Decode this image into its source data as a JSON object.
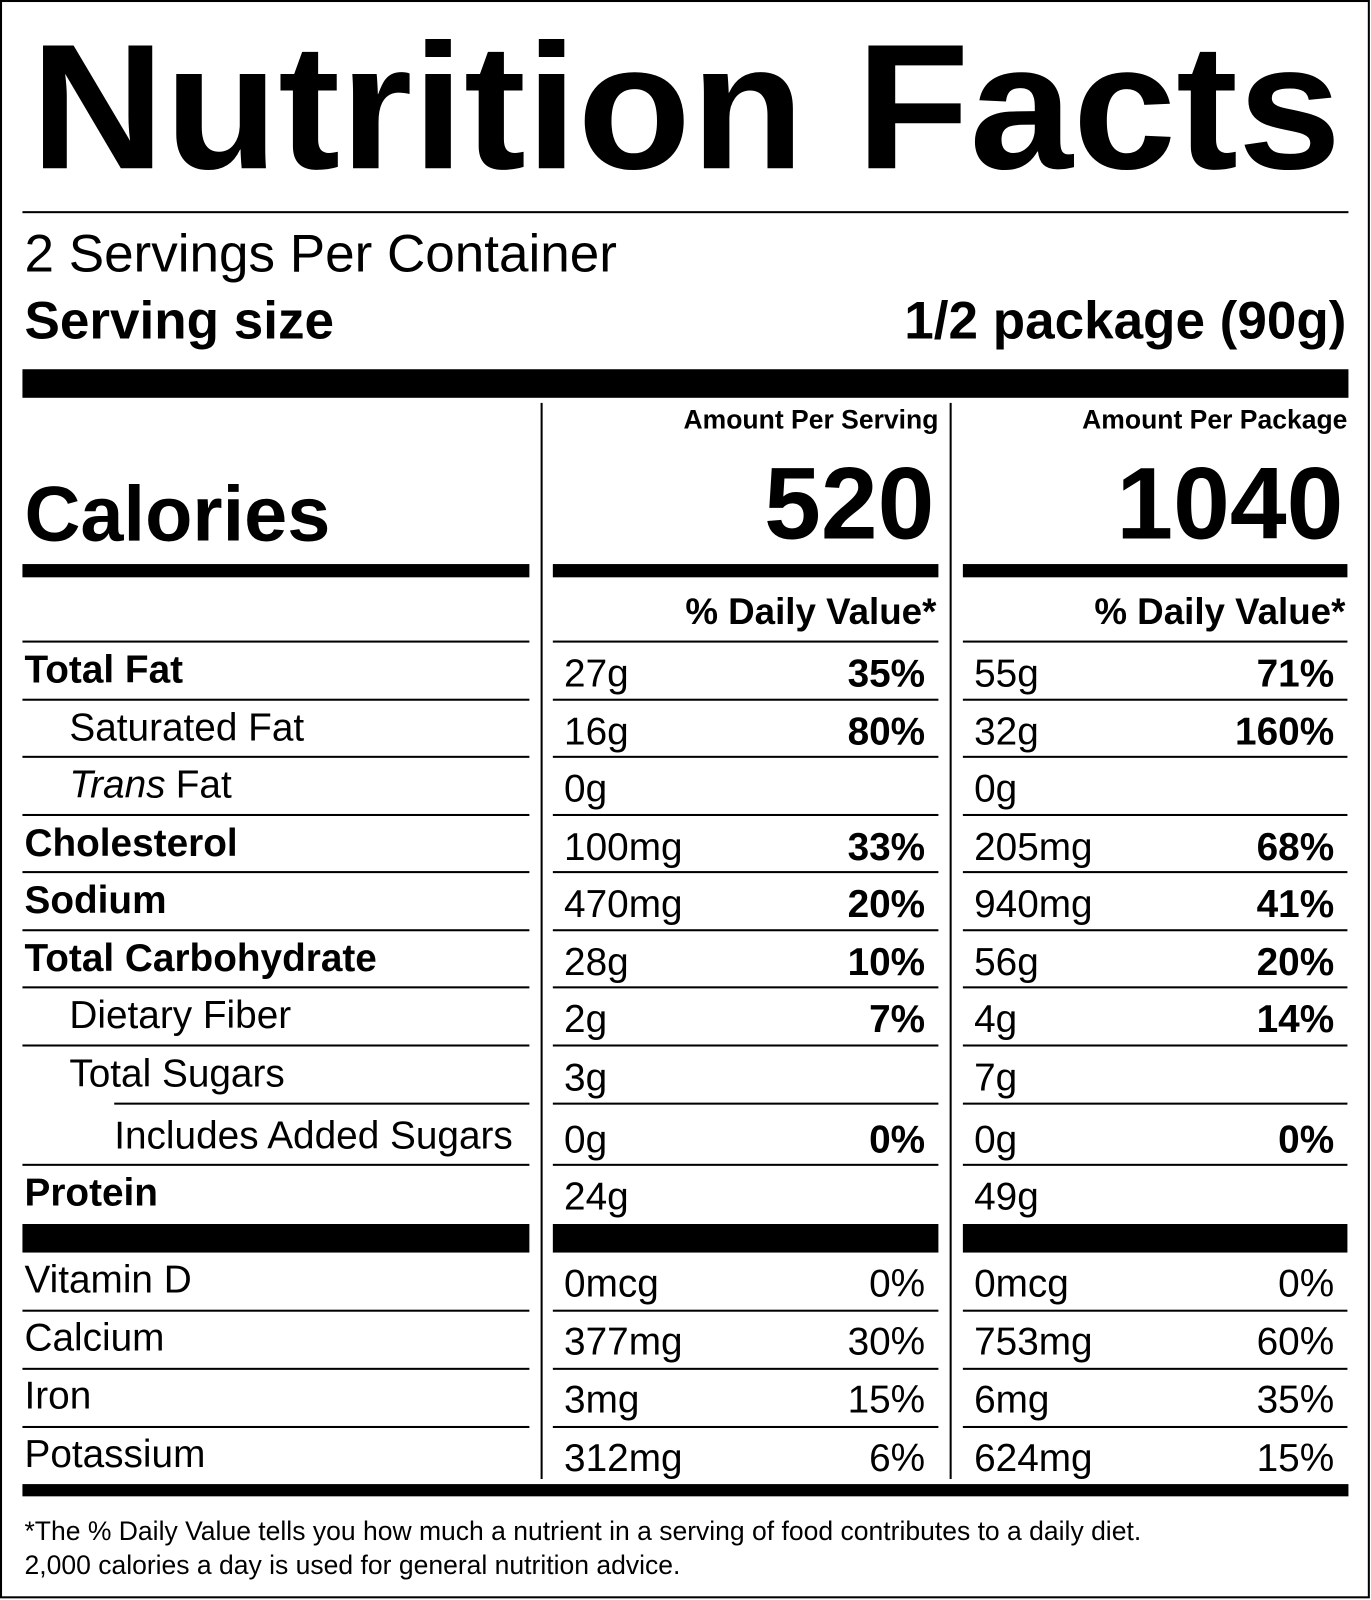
{
  "title": "Nutrition Facts",
  "servings": "2 Servings Per Container",
  "serving_size": {
    "label": "Serving size",
    "value": "1/2 package (90g)"
  },
  "calories_label": "Calories",
  "columns": [
    {
      "heading": "Amount Per Serving",
      "calories": 520,
      "daily_value_heading": "% Daily Value*"
    },
    {
      "heading": "Amount Per Package",
      "calories": 1040,
      "daily_value_heading": "% Daily Value*"
    }
  ],
  "nutrients": [
    {
      "name": "Total Fat",
      "bold": true,
      "level": 0,
      "values": [
        {
          "amount": "27g",
          "dv": "35%"
        },
        {
          "amount": "55g",
          "dv": "71%"
        }
      ]
    },
    {
      "name": "Saturated Fat",
      "bold": false,
      "level": 1,
      "values": [
        {
          "amount": "16g",
          "dv": "80%"
        },
        {
          "amount": "32g",
          "dv": "160%"
        }
      ]
    },
    {
      "name_italic": "Trans",
      "name": "Fat",
      "bold": false,
      "level": 1,
      "values": [
        {
          "amount": "0g",
          "dv": null
        },
        {
          "amount": "0g",
          "dv": null
        }
      ]
    },
    {
      "name": "Cholesterol",
      "bold": true,
      "level": 0,
      "values": [
        {
          "amount": "100mg",
          "dv": "33%"
        },
        {
          "amount": "205mg",
          "dv": "68%"
        }
      ]
    },
    {
      "name": "Sodium",
      "bold": true,
      "level": 0,
      "values": [
        {
          "amount": "470mg",
          "dv": "20%"
        },
        {
          "amount": "940mg",
          "dv": "41%"
        }
      ]
    },
    {
      "name": "Total Carbohydrate",
      "bold": true,
      "level": 0,
      "values": [
        {
          "amount": "28g",
          "dv": "10%"
        },
        {
          "amount": "56g",
          "dv": "20%"
        }
      ]
    },
    {
      "name": "Dietary Fiber",
      "bold": false,
      "level": 1,
      "values": [
        {
          "amount": "2g",
          "dv": "7%"
        },
        {
          "amount": "4g",
          "dv": "14%"
        }
      ]
    },
    {
      "name": "Total Sugars",
      "bold": false,
      "level": 1,
      "values": [
        {
          "amount": "3g",
          "dv": null
        },
        {
          "amount": "7g",
          "dv": null
        }
      ]
    },
    {
      "name": "Includes Added Sugars",
      "bold": false,
      "level": 2,
      "values": [
        {
          "amount": "0g",
          "dv": "0%"
        },
        {
          "amount": "0g",
          "dv": "0%"
        }
      ]
    },
    {
      "name": "Protein",
      "bold": true,
      "level": 0,
      "values": [
        {
          "amount": "24g",
          "dv": null
        },
        {
          "amount": "49g",
          "dv": null
        }
      ]
    }
  ],
  "vitamins": [
    {
      "name": "Vitamin D",
      "values": [
        {
          "amount": "0mcg",
          "dv": "0%"
        },
        {
          "amount": "0mcg",
          "dv": "0%"
        }
      ]
    },
    {
      "name": "Calcium",
      "values": [
        {
          "amount": "377mg",
          "dv": "30%"
        },
        {
          "amount": "753mg",
          "dv": "60%"
        }
      ]
    },
    {
      "name": "Iron",
      "values": [
        {
          "amount": "3mg",
          "dv": "15%"
        },
        {
          "amount": "6mg",
          "dv": "35%"
        }
      ]
    },
    {
      "name": "Potassium",
      "values": [
        {
          "amount": "312mg",
          "dv": "6%"
        },
        {
          "amount": "624mg",
          "dv": "15%"
        }
      ]
    }
  ],
  "footnote": [
    "*The % Daily Value tells you how much a nutrient in a serving of food contributes to a daily diet.",
    "2,000 calories a day is used for general nutrition advice."
  ]
}
